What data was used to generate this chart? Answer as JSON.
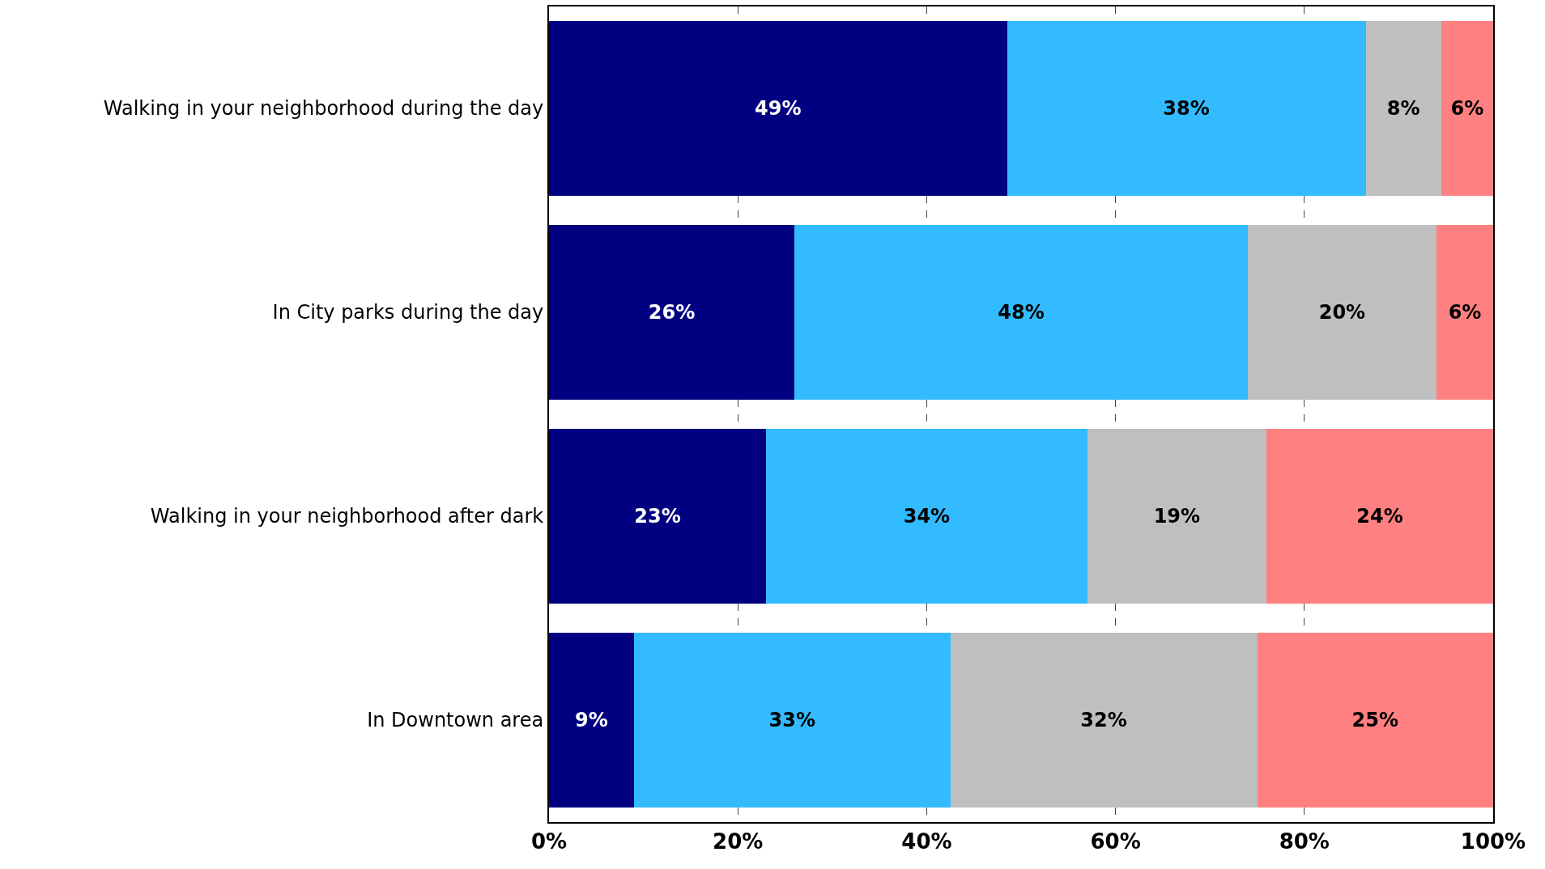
{
  "chart_data": {
    "type": "bar",
    "orientation": "horizontal",
    "stacked": true,
    "grid": "x",
    "categories": [
      "Walking in your neighborhood during the day",
      "In City parks during the day",
      "Walking in your neighborhood after dark",
      "In Downtown area"
    ],
    "series": [
      {
        "color": "#000080",
        "values": [
          48.5,
          26,
          23,
          9
        ],
        "value_labels": [
          "49%",
          "26%",
          "23%",
          "9%"
        ]
      },
      {
        "color": "#33bbff",
        "values": [
          38,
          48,
          34,
          33.5
        ],
        "value_labels": [
          "38%",
          "48%",
          "34%",
          "33%"
        ]
      },
      {
        "color": "#bfbfbf",
        "values": [
          8,
          20,
          19,
          32.5
        ],
        "value_labels": [
          "8%",
          "20%",
          "19%",
          "32%"
        ]
      },
      {
        "color": "#ff8080",
        "values": [
          5.5,
          6,
          24,
          25
        ],
        "value_labels": [
          "6%",
          "6%",
          "24%",
          "25%"
        ]
      }
    ],
    "xlim": [
      0,
      100
    ],
    "xticks": [
      {
        "value": 0,
        "label": "0%"
      },
      {
        "value": 20,
        "label": "20%"
      },
      {
        "value": 40,
        "label": "40%"
      },
      {
        "value": 60,
        "label": "60%"
      },
      {
        "value": 80,
        "label": "80%"
      },
      {
        "value": 100,
        "label": "100%"
      }
    ]
  }
}
